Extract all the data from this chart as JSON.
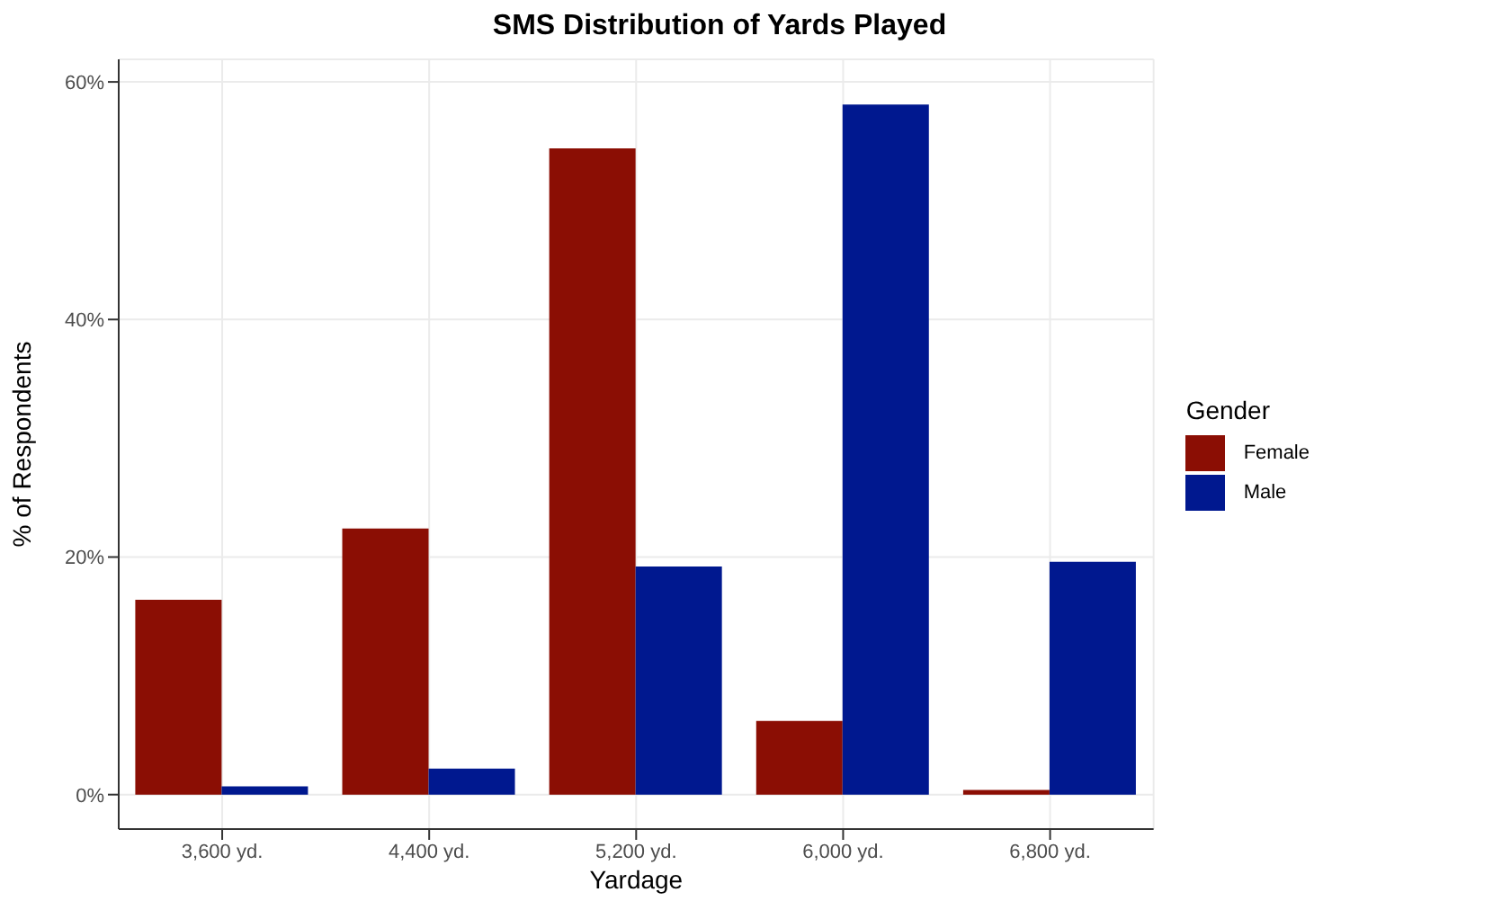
{
  "chart_data": {
    "type": "bar",
    "title": "SMS Distribution of Yards Played",
    "xlabel": "Yardage",
    "ylabel": "% of Respondents",
    "legend_title": "Gender",
    "categories": [
      "3,600 yd.",
      "4,400 yd.",
      "5,200 yd.",
      "6,000 yd.",
      "6,800 yd."
    ],
    "series": [
      {
        "name": "Female",
        "color": "#8b0e04",
        "values": [
          16.4,
          22.4,
          54.4,
          6.2,
          0.4
        ]
      },
      {
        "name": "Male",
        "color": "#00188f",
        "values": [
          0.7,
          2.2,
          19.2,
          58.1,
          19.6
        ]
      }
    ],
    "ylim": [
      -2.9,
      61.9
    ],
    "yticks": [
      {
        "value": 0,
        "label": "0%"
      },
      {
        "value": 20,
        "label": "20%"
      },
      {
        "value": 40,
        "label": "40%"
      },
      {
        "value": 60,
        "label": "60%"
      }
    ],
    "grid": true,
    "legend": "right"
  }
}
